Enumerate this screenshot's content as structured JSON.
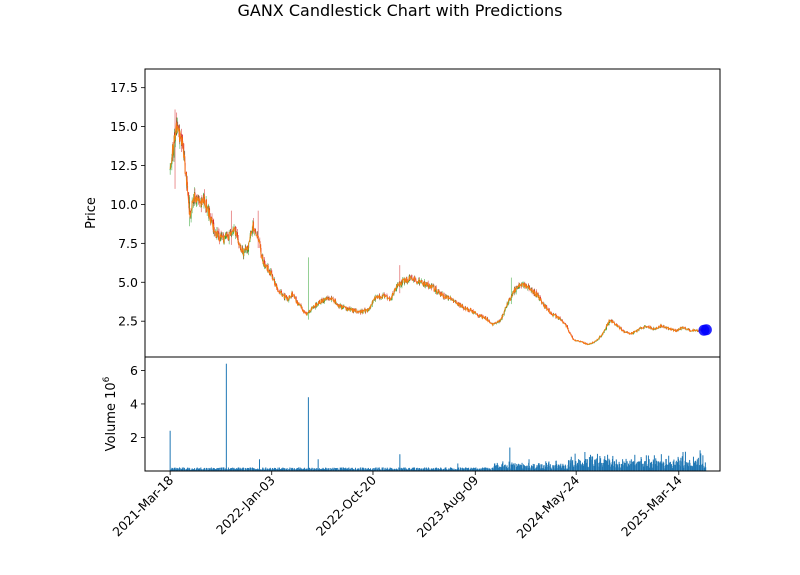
{
  "chart_data": {
    "type": "candlestick",
    "title": "GANX Candlestick Chart with Predictions",
    "price_panel": {
      "ylabel": "Price",
      "ylim": [
        0.2,
        18.7
      ],
      "yticks": [
        2.5,
        5.0,
        7.5,
        10.0,
        12.5,
        15.0,
        17.5
      ],
      "ytick_labels": [
        "2.5",
        "5.0",
        "7.5",
        "10.0",
        "12.5",
        "15.0",
        "17.5"
      ],
      "up_color": "#2ca02c",
      "down_color": "#d62728",
      "close_line_color": "#ff7f0e",
      "prediction_color": "#0000ff",
      "close_trend": [
        [
          "2021-03-18",
          12.2
        ],
        [
          "2021-03-25",
          13.4
        ],
        [
          "2021-04-01",
          14.6
        ],
        [
          "2021-04-08",
          15.2
        ],
        [
          "2021-04-15",
          14.4
        ],
        [
          "2021-04-22",
          14.1
        ],
        [
          "2021-04-29",
          12.6
        ],
        [
          "2021-05-06",
          11.2
        ],
        [
          "2021-05-13",
          9.4
        ],
        [
          "2021-05-20",
          10.1
        ],
        [
          "2021-05-27",
          10.6
        ],
        [
          "2021-06-10",
          10.0
        ],
        [
          "2021-06-24",
          10.3
        ],
        [
          "2021-07-08",
          9.4
        ],
        [
          "2021-07-22",
          8.3
        ],
        [
          "2021-08-05",
          7.9
        ],
        [
          "2021-08-19",
          7.8
        ],
        [
          "2021-09-02",
          8.0
        ],
        [
          "2021-09-16",
          8.6
        ],
        [
          "2021-09-30",
          7.6
        ],
        [
          "2021-10-14",
          6.9
        ],
        [
          "2021-10-28",
          7.3
        ],
        [
          "2021-11-11",
          8.6
        ],
        [
          "2021-11-25",
          8.0
        ],
        [
          "2021-12-09",
          6.3
        ],
        [
          "2021-12-23",
          5.9
        ],
        [
          "2022-01-06",
          5.3
        ],
        [
          "2022-01-20",
          4.5
        ],
        [
          "2022-02-03",
          4.2
        ],
        [
          "2022-02-17",
          3.9
        ],
        [
          "2022-03-03",
          4.3
        ],
        [
          "2022-03-17",
          3.7
        ],
        [
          "2022-03-31",
          3.3
        ],
        [
          "2022-04-14",
          2.9
        ],
        [
          "2022-04-28",
          3.3
        ],
        [
          "2022-05-12",
          3.6
        ],
        [
          "2022-06-02",
          3.9
        ],
        [
          "2022-06-23",
          4.0
        ],
        [
          "2022-07-14",
          3.5
        ],
        [
          "2022-08-04",
          3.3
        ],
        [
          "2022-08-25",
          3.2
        ],
        [
          "2022-09-15",
          3.1
        ],
        [
          "2022-10-06",
          3.2
        ],
        [
          "2022-10-27",
          4.0
        ],
        [
          "2022-11-17",
          4.1
        ],
        [
          "2022-12-08",
          3.9
        ],
        [
          "2022-12-29",
          4.8
        ],
        [
          "2023-01-19",
          5.1
        ],
        [
          "2023-02-09",
          5.3
        ],
        [
          "2023-03-02",
          5.0
        ],
        [
          "2023-03-23",
          4.9
        ],
        [
          "2023-04-13",
          4.6
        ],
        [
          "2023-05-04",
          4.2
        ],
        [
          "2023-05-25",
          4.0
        ],
        [
          "2023-06-15",
          3.7
        ],
        [
          "2023-07-06",
          3.4
        ],
        [
          "2023-07-27",
          3.2
        ],
        [
          "2023-08-17",
          2.9
        ],
        [
          "2023-09-07",
          2.7
        ],
        [
          "2023-09-28",
          2.3
        ],
        [
          "2023-10-19",
          2.5
        ],
        [
          "2023-11-09",
          3.6
        ],
        [
          "2023-11-30",
          4.5
        ],
        [
          "2023-12-21",
          4.9
        ],
        [
          "2024-01-11",
          4.6
        ],
        [
          "2024-02-01",
          4.2
        ],
        [
          "2024-02-22",
          3.5
        ],
        [
          "2024-03-14",
          3.0
        ],
        [
          "2024-04-04",
          2.7
        ],
        [
          "2024-04-25",
          2.2
        ],
        [
          "2024-05-16",
          1.3
        ],
        [
          "2024-06-06",
          1.2
        ],
        [
          "2024-06-27",
          1.0
        ],
        [
          "2024-07-18",
          1.2
        ],
        [
          "2024-08-08",
          1.7
        ],
        [
          "2024-08-29",
          2.6
        ],
        [
          "2024-09-19",
          2.2
        ],
        [
          "2024-10-10",
          1.8
        ],
        [
          "2024-10-31",
          1.7
        ],
        [
          "2024-11-21",
          2.0
        ],
        [
          "2024-12-12",
          2.2
        ],
        [
          "2025-01-02",
          2.0
        ],
        [
          "2025-01-23",
          2.2
        ],
        [
          "2025-02-13",
          2.0
        ],
        [
          "2025-03-06",
          1.9
        ],
        [
          "2025-03-27",
          2.1
        ],
        [
          "2025-04-17",
          1.9
        ],
        [
          "2025-05-08",
          1.9
        ],
        [
          "2025-05-29",
          2.0
        ]
      ],
      "spikes": [
        {
          "date": "2021-04-17",
          "high": 17.9,
          "low": 12.5
        },
        {
          "date": "2021-04-01",
          "high": 16.1,
          "low": 11.0
        },
        {
          "date": "2021-05-13",
          "high": 10.6,
          "low": 8.6
        },
        {
          "date": "2021-09-09",
          "high": 9.6,
          "low": 7.4
        },
        {
          "date": "2021-11-25",
          "high": 9.6,
          "low": 7.2
        },
        {
          "date": "2022-04-18",
          "high": 6.6,
          "low": 2.6
        },
        {
          "date": "2023-01-05",
          "high": 6.1,
          "low": 4.3
        },
        {
          "date": "2023-11-20",
          "high": 5.3,
          "low": 3.6
        },
        {
          "date": "2024-08-25",
          "high": 3.1,
          "low": 1.6
        }
      ],
      "predictions": [
        {
          "date": "2025-05-25",
          "value": 1.92
        },
        {
          "date": "2025-06-01",
          "value": 1.95
        }
      ]
    },
    "volume_panel": {
      "ylabel": "Volume  10",
      "ylabel_exponent": "6",
      "ylim": [
        0,
        6.8
      ],
      "yticks": [
        2,
        4,
        6
      ],
      "ytick_labels": [
        "2",
        "4",
        "6"
      ],
      "bar_color": "#1f77b4",
      "baseline_level": 0.12,
      "spikes": [
        {
          "date": "2021-03-18",
          "value": 2.4
        },
        {
          "date": "2021-03-20",
          "value": 0.4
        },
        {
          "date": "2021-08-26",
          "value": 6.4
        },
        {
          "date": "2021-11-29",
          "value": 0.7
        },
        {
          "date": "2022-04-18",
          "value": 4.4
        },
        {
          "date": "2022-05-16",
          "value": 0.7
        },
        {
          "date": "2023-01-05",
          "value": 1.0
        },
        {
          "date": "2023-06-20",
          "value": 0.45
        },
        {
          "date": "2023-11-16",
          "value": 1.4
        },
        {
          "date": "2024-01-10",
          "value": 0.7
        },
        {
          "date": "2024-06-01",
          "value": 3.0
        },
        {
          "date": "2024-08-25",
          "value": 4.4
        },
        {
          "date": "2024-10-05",
          "value": 1.2
        },
        {
          "date": "2025-04-20",
          "value": 0.9
        }
      ]
    },
    "xaxis": {
      "start": "2021-03-18",
      "end": "2025-06-01",
      "xlim": [
        "2021-01-05",
        "2025-07-10"
      ],
      "ticks": [
        "2021-03-18",
        "2022-01-03",
        "2022-10-20",
        "2023-08-09",
        "2024-05-24",
        "2025-03-14"
      ],
      "tick_labels": [
        "2021-Mar-18",
        "2022-Jan-03",
        "2022-Oct-20",
        "2023-Aug-09",
        "2024-May-24",
        "2025-Mar-14"
      ]
    }
  }
}
